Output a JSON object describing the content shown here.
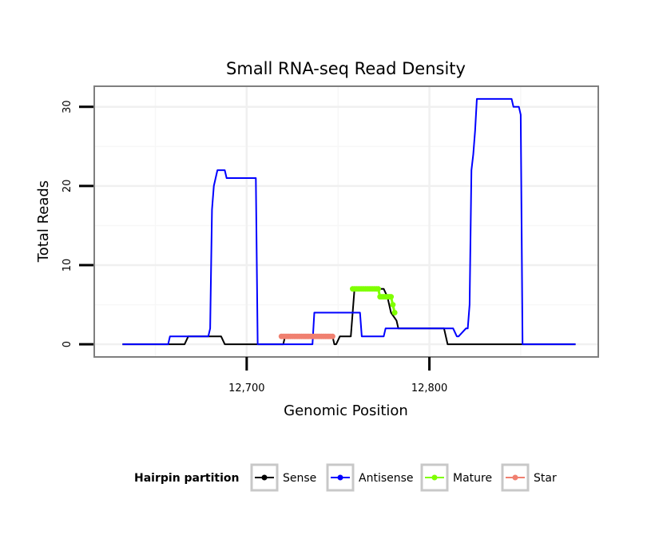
{
  "chart_data": {
    "type": "line",
    "title": "Small RNA-seq Read Density",
    "xlabel": "Genomic Position",
    "ylabel": "Total Reads",
    "xlim": [
      12617,
      12892
    ],
    "ylim": [
      -1.5,
      32.5
    ],
    "x_ticks": [
      12700,
      12800
    ],
    "x_tick_labels": [
      "12,700",
      "12,800"
    ],
    "y_ticks": [
      0,
      10,
      20,
      30
    ],
    "y_tick_labels": [
      "0",
      "10",
      "20",
      "30"
    ],
    "grid": true,
    "legend": {
      "title": "Hairpin partition",
      "placement": "bottom",
      "entries": [
        {
          "name": "Sense",
          "color": "#000000"
        },
        {
          "name": "Antisense",
          "color": "#0000ff"
        },
        {
          "name": "Mature",
          "color": "#7fff00"
        },
        {
          "name": "Star",
          "color": "#f08070"
        }
      ]
    },
    "series": [
      {
        "name": "Sense",
        "color": "#000000",
        "style": "line",
        "x": [
          12632,
          12666,
          12668,
          12686,
          12688,
          12720,
          12721,
          12747,
          12748,
          12749,
          12751,
          12757,
          12759,
          12775,
          12777,
          12779,
          12782,
          12783,
          12808,
          12810,
          12880
        ],
        "y": [
          0,
          0,
          1,
          1,
          0,
          0,
          1,
          1,
          0,
          0,
          1,
          1,
          7,
          7,
          6,
          4,
          3,
          2,
          2,
          0,
          0
        ]
      },
      {
        "name": "Antisense",
        "color": "#0000ff",
        "style": "line",
        "x": [
          12632,
          12657,
          12658,
          12679,
          12680,
          12681,
          12682,
          12684,
          12688,
          12689,
          12705,
          12706,
          12719,
          12736,
          12737,
          12762,
          12763,
          12775,
          12776,
          12793,
          12794,
          12796,
          12797,
          12800,
          12803,
          12804,
          12805,
          12806,
          12807,
          12808,
          12810,
          12813,
          12815,
          12816,
          12820,
          12821,
          12822,
          12823,
          12824,
          12825,
          12826,
          12828,
          12830,
          12845,
          12846,
          12849,
          12850,
          12851,
          12880
        ],
        "y": [
          0,
          0,
          1,
          1,
          2,
          17,
          20,
          22,
          22,
          21,
          21,
          0,
          0,
          0,
          4,
          4,
          1,
          1,
          2,
          2,
          2,
          2,
          2,
          2,
          2,
          2,
          2,
          2,
          2,
          2,
          2,
          2,
          1,
          1,
          2,
          2,
          5,
          22,
          24,
          27,
          31,
          31,
          31,
          31,
          30,
          30,
          29,
          0,
          0
        ]
      },
      {
        "name": "Mature",
        "color": "#7fff00",
        "style": "line-points",
        "x": [
          12758,
          12759,
          12760,
          12761,
          12762,
          12763,
          12764,
          12765,
          12766,
          12767,
          12768,
          12769,
          12770,
          12771,
          12772,
          12773,
          12774,
          12775,
          12776,
          12777,
          12778,
          12779,
          12780,
          12781
        ],
        "y": [
          7,
          7,
          7,
          7,
          7,
          7,
          7,
          7,
          7,
          7,
          7,
          7,
          7,
          7,
          7,
          6,
          6,
          6,
          6,
          6,
          6,
          6,
          5,
          4
        ]
      },
      {
        "name": "Star",
        "color": "#f08070",
        "style": "line-points",
        "x": [
          12719,
          12720,
          12721,
          12722,
          12723,
          12724,
          12725,
          12726,
          12727,
          12728,
          12729,
          12730,
          12731,
          12732,
          12733,
          12734,
          12735,
          12736,
          12737,
          12738,
          12739,
          12740,
          12741,
          12742,
          12743,
          12744,
          12745,
          12746,
          12747
        ],
        "y": [
          1,
          1,
          1,
          1,
          1,
          1,
          1,
          1,
          1,
          1,
          1,
          1,
          1,
          1,
          1,
          1,
          1,
          1,
          1,
          1,
          1,
          1,
          1,
          1,
          1,
          1,
          1,
          1,
          1
        ]
      }
    ]
  }
}
